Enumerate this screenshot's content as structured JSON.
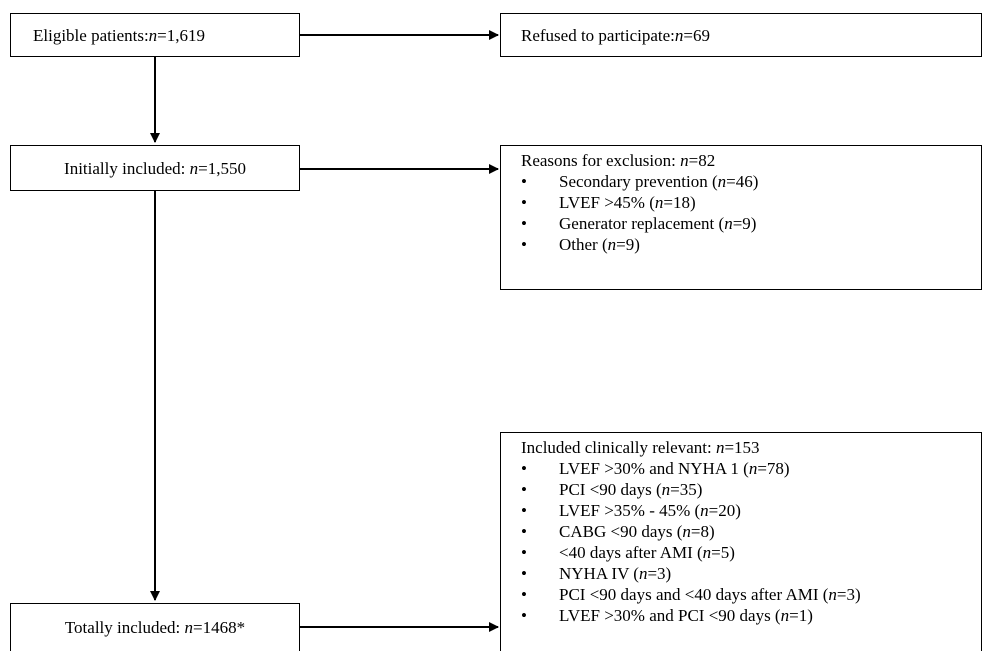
{
  "boxes": {
    "eligible": {
      "label": "Eligible patients: ",
      "n": "n",
      "value": "=1,619"
    },
    "refused": {
      "label": "Refused to participate: ",
      "n": "n",
      "value": "=69"
    },
    "initial": {
      "label": "Initially included: ",
      "n": "n",
      "value": "=1,550"
    },
    "total": {
      "label": "Totally included: ",
      "n": "n",
      "value": "=1468*"
    }
  },
  "exclusion": {
    "title": "Reasons for exclusion: ",
    "n": "n",
    "value": "=82",
    "items": [
      {
        "label": "Secondary prevention (",
        "n": "n",
        "value": "=46)"
      },
      {
        "label": "LVEF >45% (",
        "n": "n",
        "value": "=18)"
      },
      {
        "label": "Generator replacement (",
        "n": "n",
        "value": "=9)"
      },
      {
        "label": "Other (",
        "n": "n",
        "value": "=9)"
      }
    ]
  },
  "clinical": {
    "title": "Included clinically relevant: ",
    "n": "n",
    "value": "=153",
    "items": [
      {
        "label": "LVEF >30% and NYHA 1 (",
        "n": "n",
        "value": "=78)"
      },
      {
        "label": "PCI <90 days (",
        "n": "n",
        "value": "=35)"
      },
      {
        "label": "LVEF >35% - 45% (",
        "n": "n",
        "value": "=20)"
      },
      {
        "label": "CABG <90 days (",
        "n": "n",
        "value": "=8)"
      },
      {
        "label": "<40 days after AMI (",
        "n": "n",
        "value": "=5)"
      },
      {
        "label": "NYHA IV (",
        "n": "n",
        "value": "=3)"
      },
      {
        "label": "PCI <90 days and <40 days after AMI (",
        "n": "n",
        "value": "=3)"
      },
      {
        "label": "LVEF >30% and PCI <90 days (",
        "n": "n",
        "value": "=1)"
      }
    ]
  }
}
